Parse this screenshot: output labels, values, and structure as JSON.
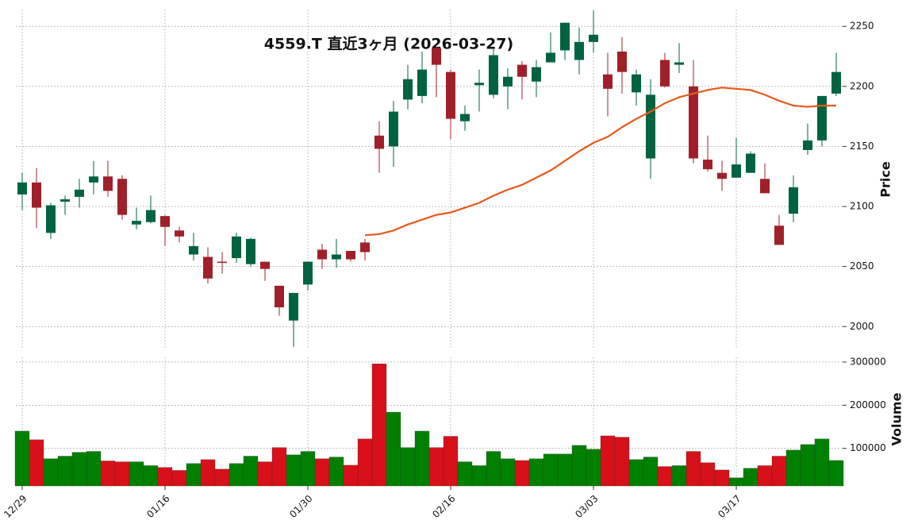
{
  "chart_data": {
    "type": "candlestick",
    "title": "4559.T 直近3ヶ月 (2026-03-27)",
    "ylabel": "Price",
    "categories": [
      "12/29",
      null,
      null,
      null,
      null,
      null,
      null,
      null,
      null,
      null,
      "01/16",
      null,
      null,
      null,
      null,
      null,
      null,
      null,
      null,
      null,
      "01/30",
      null,
      null,
      null,
      null,
      null,
      null,
      null,
      null,
      null,
      "02/16",
      null,
      null,
      null,
      null,
      null,
      null,
      null,
      null,
      null,
      "03/03",
      null,
      null,
      null,
      null,
      null,
      null,
      null,
      null,
      null,
      "03/17",
      null,
      null,
      null,
      null,
      null,
      null,
      null
    ],
    "open": [
      2110,
      2120,
      2078,
      2104,
      2108,
      2120,
      2125,
      2123,
      2085,
      2087,
      2092,
      2080,
      2060,
      2058,
      2054,
      2057,
      2052,
      2054,
      2034,
      2005,
      2035,
      2064,
      2056,
      2063,
      2070,
      2159,
      2150,
      2189,
      2192,
      2232,
      2212,
      2171,
      2201,
      2193,
      2200,
      2218,
      2204,
      2220,
      2230,
      2222,
      2237,
      2210,
      2229,
      2195,
      2140,
      2222,
      2218,
      2200,
      2139,
      2128,
      2124,
      2128,
      2123,
      2084,
      2094,
      2147,
      2155,
      2194
    ],
    "high": [
      2128,
      2132,
      2103,
      2109,
      2123,
      2138,
      2138,
      2126,
      2099,
      2109,
      2093,
      2083,
      2078,
      2066,
      2062,
      2078,
      2074,
      2054,
      2034,
      2028,
      2054,
      2069,
      2073,
      2063,
      2073,
      2171,
      2188,
      2218,
      2229,
      2233,
      2214,
      2184,
      2214,
      2232,
      2215,
      2221,
      2222,
      2245,
      2253,
      2249,
      2263,
      2228,
      2241,
      2214,
      2206,
      2228,
      2236,
      2222,
      2159,
      2138,
      2157,
      2146,
      2136,
      2093,
      2126,
      2169,
      2192,
      2228
    ],
    "low": [
      2097,
      2082,
      2073,
      2093,
      2099,
      2110,
      2108,
      2089,
      2081,
      2086,
      2067,
      2070,
      2055,
      2036,
      2044,
      2053,
      2050,
      2038,
      2009,
      1983,
      2030,
      2048,
      2049,
      2054,
      2055,
      2128,
      2133,
      2181,
      2186,
      2191,
      2156,
      2163,
      2179,
      2190,
      2181,
      2189,
      2191,
      2220,
      2222,
      2210,
      2228,
      2175,
      2194,
      2184,
      2123,
      2199,
      2211,
      2136,
      2129,
      2113,
      2124,
      2128,
      2111,
      2068,
      2087,
      2143,
      2150,
      2192
    ],
    "close": [
      2120,
      2099,
      2101,
      2106,
      2114,
      2125,
      2113,
      2093,
      2088,
      2097,
      2083,
      2075,
      2067,
      2040,
      2053,
      2075,
      2073,
      2048,
      2016,
      2028,
      2054,
      2056,
      2060,
      2056,
      2062,
      2148,
      2179,
      2206,
      2214,
      2218,
      2173,
      2177,
      2203,
      2226,
      2208,
      2208,
      2216,
      2228,
      2253,
      2237,
      2243,
      2198,
      2212,
      2210,
      2193,
      2200,
      2220,
      2140,
      2131,
      2123,
      2135,
      2144,
      2111,
      2068,
      2116,
      2155,
      2192,
      2212
    ],
    "up_color": "#006340",
    "down_color": "#a0202a",
    "ma": {
      "color": "#e8581a",
      "values": [
        null,
        null,
        null,
        null,
        null,
        null,
        null,
        null,
        null,
        null,
        null,
        null,
        null,
        null,
        null,
        null,
        null,
        null,
        null,
        null,
        null,
        null,
        null,
        null,
        2076,
        2077,
        2080,
        2085,
        2089,
        2093,
        2095,
        2099,
        2103,
        2109,
        2114,
        2118,
        2124,
        2130,
        2138,
        2146,
        2153,
        2158,
        2166,
        2173,
        2179,
        2186,
        2191,
        2194,
        2197,
        2199,
        2198,
        2197,
        2193,
        2188,
        2184,
        2183,
        2184,
        2184
      ]
    },
    "ylim": [
      1981,
      2264
    ],
    "yticks": [
      2000,
      2050,
      2100,
      2150,
      2200,
      2250
    ],
    "grid": true,
    "volume": {
      "ylabel": "Volume",
      "up_color": "#008000",
      "down_color": "#d8101a",
      "values": [
        140000,
        120000,
        76000,
        82000,
        91000,
        93000,
        71000,
        69000,
        69000,
        60000,
        56000,
        49000,
        65000,
        74000,
        52000,
        65000,
        82000,
        69000,
        102000,
        85000,
        93000,
        76000,
        80000,
        61000,
        122000,
        296000,
        184000,
        102000,
        140000,
        102000,
        128000,
        69000,
        60000,
        93000,
        76000,
        72000,
        76000,
        87000,
        87000,
        107000,
        98000,
        129000,
        126000,
        74000,
        80000,
        58000,
        60000,
        93000,
        67000,
        50000,
        32000,
        54000,
        60000,
        82000,
        96000,
        109000,
        122000,
        72000
      ],
      "ylim": [
        13000,
        311000
      ],
      "yticks": [
        100000,
        200000,
        300000
      ]
    }
  }
}
